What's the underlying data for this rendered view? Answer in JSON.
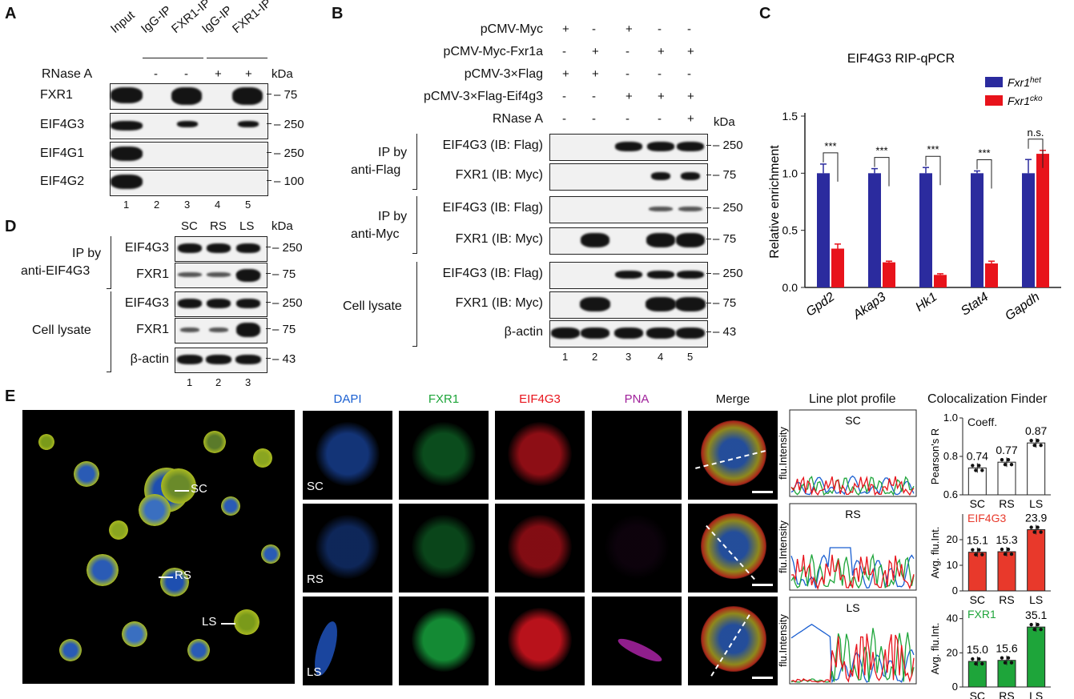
{
  "panelA": {
    "label": "A",
    "lanes": [
      "Input",
      "IgG-IP",
      "FXR1-IP",
      "IgG-IP",
      "FXR1-IP"
    ],
    "rnase_label": "RNase A",
    "rnase": [
      "-",
      "-",
      "+",
      "+"
    ],
    "kda": "kDa",
    "rows": [
      {
        "name": "FXR1",
        "mw": "75"
      },
      {
        "name": "EIF4G3",
        "mw": "250"
      },
      {
        "name": "EIF4G1",
        "mw": "250"
      },
      {
        "name": "EIF4G2",
        "mw": "100"
      }
    ],
    "lane_numbers": [
      "1",
      "2",
      "3",
      "4",
      "5"
    ]
  },
  "panelB": {
    "label": "B",
    "conditions": [
      {
        "name": "pCMV-Myc",
        "signs": [
          "+",
          "-",
          "+",
          "-",
          "-"
        ]
      },
      {
        "name": "pCMV-Myc-Fxr1a",
        "signs": [
          "-",
          "+",
          "-",
          "+",
          "+"
        ]
      },
      {
        "name": "pCMV-3×Flag",
        "signs": [
          "+",
          "+",
          "-",
          "-",
          "-"
        ]
      },
      {
        "name": "pCMV-3×Flag-Eif4g3",
        "signs": [
          "-",
          "-",
          "+",
          "+",
          "+"
        ]
      },
      {
        "name": "RNase A",
        "signs": [
          "-",
          "-",
          "-",
          "-",
          "+"
        ]
      }
    ],
    "kda": "kDa",
    "groups": [
      {
        "line1": "IP by",
        "line2": "anti-Flag"
      },
      {
        "line1": "IP by",
        "line2": "anti-Myc"
      },
      {
        "line1": "Cell lysate",
        "line2": ""
      }
    ],
    "rows": [
      {
        "name": "EIF4G3 (IB: Flag)",
        "mw": "250"
      },
      {
        "name": "FXR1 (IB: Myc)",
        "mw": "75"
      },
      {
        "name": "EIF4G3 (IB: Flag)",
        "mw": "250"
      },
      {
        "name": "FXR1 (IB: Myc)",
        "mw": "75"
      },
      {
        "name": "EIF4G3 (IB: Flag)",
        "mw": "250"
      },
      {
        "name": "FXR1 (IB: Myc)",
        "mw": "75"
      },
      {
        "name": "β-actin",
        "mw": "43"
      }
    ],
    "lane_numbers": [
      "1",
      "2",
      "3",
      "4",
      "5"
    ]
  },
  "panelC": {
    "label": "C",
    "chart_data": {
      "type": "bar",
      "title": "EIF4G3 RIP-qPCR",
      "ylabel": "Relative enrichment",
      "ylim": [
        0,
        1.5
      ],
      "yticks": [
        "0.0",
        "0.5",
        "1.0",
        "1.5"
      ],
      "categories": [
        "Gpd2",
        "Akap3",
        "Hk1",
        "Stat4",
        "Gapdh"
      ],
      "series": [
        {
          "name": "Fxr1",
          "sup": "het",
          "color": "#2b2b9e",
          "values": [
            1.0,
            1.0,
            1.0,
            1.0,
            1.0
          ],
          "errors": [
            0.08,
            0.04,
            0.05,
            0.02,
            0.12
          ]
        },
        {
          "name": "Fxr1",
          "sup": "cko",
          "color": "#e8131b",
          "values": [
            0.34,
            0.22,
            0.11,
            0.21,
            1.17
          ],
          "errors": [
            0.04,
            0.01,
            0.01,
            0.02,
            0.03
          ]
        }
      ],
      "significance": [
        "***",
        "***",
        "***",
        "***",
        "n.s."
      ]
    }
  },
  "panelD": {
    "label": "D",
    "lanes": [
      "SC",
      "RS",
      "LS"
    ],
    "kda": "kDa",
    "groups": [
      {
        "line1": "IP by",
        "line2": "anti-EIF4G3"
      },
      {
        "line1": "Cell lysate",
        "line2": ""
      }
    ],
    "rows": [
      {
        "name": "EIF4G3",
        "mw": "250"
      },
      {
        "name": "FXR1",
        "mw": "75"
      },
      {
        "name": "EIF4G3",
        "mw": "250"
      },
      {
        "name": "FXR1",
        "mw": "75"
      },
      {
        "name": "β-actin",
        "mw": "43"
      }
    ],
    "lane_numbers": [
      "1",
      "2",
      "3"
    ]
  },
  "panelE": {
    "label": "E",
    "overview_labels": [
      "SC",
      "RS",
      "LS"
    ],
    "channels": [
      {
        "name": "DAPI",
        "color": "#1a5fd1"
      },
      {
        "name": "FXR1",
        "color": "#1ea53a"
      },
      {
        "name": "EIF4G3",
        "color": "#e8131b"
      },
      {
        "name": "PNA",
        "color": "#a0219b"
      },
      {
        "name": "Merge",
        "color": "#111111"
      }
    ],
    "row_labels": [
      "SC",
      "RS",
      "LS"
    ],
    "line_plot": {
      "title": "Line plot profile",
      "ylabel": "flu.Intensity",
      "rows": [
        "SC",
        "RS",
        "LS"
      ]
    },
    "coloc": {
      "title": "Colocalization Finder",
      "charts": [
        {
          "type": "bar",
          "ylabel": "Pearson's R",
          "legend": "Coeff.",
          "color": "#ffffff",
          "categories": [
            "SC",
            "RS",
            "LS"
          ],
          "values": [
            0.74,
            0.77,
            0.87
          ],
          "labels": [
            "0.74",
            "0.77",
            "0.87"
          ],
          "ylim": [
            0.6,
            1.0
          ],
          "yticks": [
            "0.6",
            "0.8",
            "1.0"
          ]
        },
        {
          "type": "bar",
          "ylabel": "Avg. flu.Int.",
          "legend": "EIF4G3",
          "color": "#e8392b",
          "categories": [
            "SC",
            "RS",
            "LS"
          ],
          "values": [
            15.1,
            15.3,
            23.9
          ],
          "labels": [
            "15.1",
            "15.3",
            "23.9"
          ],
          "ylim": [
            0,
            30
          ],
          "yticks": [
            "0",
            "10",
            "20"
          ]
        },
        {
          "type": "bar",
          "ylabel": "Avg. flu.Int.",
          "legend": "FXR1",
          "color": "#1ea53a",
          "categories": [
            "SC",
            "RS",
            "LS"
          ],
          "values": [
            15.0,
            15.6,
            35.1
          ],
          "labels": [
            "15.0",
            "15.6",
            "35.1"
          ],
          "ylim": [
            0,
            45
          ],
          "yticks": [
            "0",
            "20",
            "40"
          ]
        }
      ]
    }
  }
}
